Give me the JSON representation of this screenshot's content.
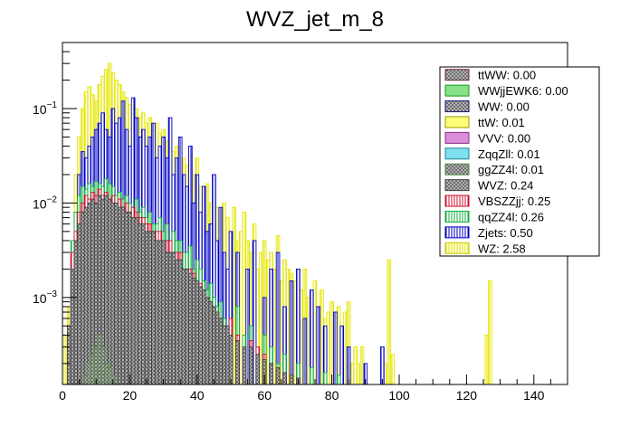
{
  "chart_data": {
    "type": "bar",
    "title": "WVZ_jet_m_8",
    "xlabel": "",
    "ylabel": "",
    "xlim": [
      0,
      150
    ],
    "ylog": true,
    "ylim": [
      0.00012,
      0.5
    ],
    "x_ticks": [
      {
        "value": 0,
        "label": "0"
      },
      {
        "value": 20,
        "label": "20"
      },
      {
        "value": 40,
        "label": "40"
      },
      {
        "value": 60,
        "label": "60"
      },
      {
        "value": 80,
        "label": "80"
      },
      {
        "value": 100,
        "label": "100"
      },
      {
        "value": 120,
        "label": "120"
      },
      {
        "value": 140,
        "label": "140"
      }
    ],
    "y_ticks": [
      {
        "value": 0.1,
        "base": "10",
        "exp": "−1"
      },
      {
        "value": 0.01,
        "base": "10",
        "exp": "−2"
      },
      {
        "value": 0.001,
        "base": "10",
        "exp": "−3"
      }
    ],
    "legend_position": "top-right",
    "legend": [
      {
        "label": "ttWW: 0.00",
        "fill": "#b07c84",
        "edge": "#6b2b39",
        "pattern": "hatch-cross"
      },
      {
        "label": "WWjjEWK6: 0.00",
        "fill": "#88e08a",
        "edge": "#1a9a1a",
        "pattern": "solid"
      },
      {
        "label": "WW: 0.00",
        "fill": "#5858a8",
        "edge": "#1a1a6b",
        "pattern": "hatch-cross"
      },
      {
        "label": "ttW: 0.01",
        "fill": "#ffff77",
        "edge": "#9a9a00",
        "pattern": "solid"
      },
      {
        "label": "VVV: 0.00",
        "fill": "#d88fd8",
        "edge": "#8a2a8a",
        "pattern": "solid"
      },
      {
        "label": "ZqqZll: 0.01",
        "fill": "#7fe0f0",
        "edge": "#1a8a9a",
        "pattern": "solid"
      },
      {
        "label": "ggZZ4l: 0.01",
        "fill": "#b7e6a0",
        "edge": "#4a8a3a",
        "pattern": "hatch-cross"
      },
      {
        "label": "WVZ: 0.24",
        "fill": "#a0a0a0",
        "edge": "#404040",
        "pattern": "hatch-cross"
      },
      {
        "label": "VBSZZjj: 0.25",
        "fill": "#ffffff",
        "edge": "#d01030",
        "pattern": "vlines-red"
      },
      {
        "label": "qqZZ4l: 0.26",
        "fill": "#ffffff",
        "edge": "#10b040",
        "pattern": "vlines-green"
      },
      {
        "label": "Zjets: 0.50",
        "fill": "#ffffff",
        "edge": "#0000c0",
        "pattern": "vlines-blue"
      },
      {
        "label": "WZ: 2.58",
        "fill": "#ffffff",
        "edge": "#c8c800",
        "pattern": "vlines-yellow"
      }
    ],
    "bin_width": 1,
    "series": [
      {
        "name": "WZ",
        "color": "#e6e600",
        "x": [
          1,
          2,
          3,
          4,
          5,
          6,
          7,
          8,
          9,
          10,
          11,
          12,
          13,
          14,
          15,
          16,
          17,
          18,
          19,
          20,
          21,
          22,
          23,
          24,
          25,
          26,
          27,
          28,
          29,
          30,
          31,
          32,
          33,
          34,
          35,
          36,
          37,
          38,
          39,
          40,
          41,
          42,
          43,
          44,
          45,
          46,
          47,
          48,
          49,
          50,
          51,
          52,
          53,
          54,
          55,
          56,
          57,
          58,
          59,
          60,
          61,
          62,
          63,
          64,
          65,
          66,
          67,
          68,
          69,
          70,
          71,
          72,
          73,
          74,
          75,
          76,
          77,
          78,
          79,
          80,
          81,
          82,
          83,
          84,
          85,
          86,
          87,
          88,
          89,
          90,
          96,
          97,
          98,
          126,
          127
        ],
        "y": [
          0.0004,
          0.0008,
          0.004,
          0.02,
          0.05,
          0.1,
          0.15,
          0.17,
          0.14,
          0.12,
          0.18,
          0.22,
          0.26,
          0.3,
          0.24,
          0.2,
          0.18,
          0.15,
          0.13,
          0.11,
          0.12,
          0.1,
          0.08,
          0.09,
          0.07,
          0.08,
          0.06,
          0.07,
          0.055,
          0.06,
          0.045,
          0.05,
          0.035,
          0.04,
          0.05,
          0.03,
          0.025,
          0.032,
          0.02,
          0.03,
          0.015,
          0.012,
          0.016,
          0.01,
          0.012,
          0.009,
          0.008,
          0.01,
          0.007,
          0.005,
          0.009,
          0.004,
          0.005,
          0.008,
          0.004,
          0.003,
          0.006,
          0.002,
          0.003,
          0.004,
          0.0025,
          0.003,
          0.002,
          0.0045,
          0.0015,
          0.0025,
          0.002,
          0.0018,
          0.0015,
          0.0016,
          0.0012,
          0.002,
          0.001,
          0.0009,
          0.0015,
          0.0008,
          0.0012,
          0.0006,
          0.0007,
          0.0009,
          0.0004,
          0.0008,
          0.0005,
          0.0007,
          0.0009,
          0.0002,
          0.0003,
          0.0002,
          0.0003,
          0.00018,
          0.0002,
          0.0025,
          0.00025,
          0.0004,
          0.0015
        ]
      },
      {
        "name": "Zjets",
        "color": "#0000c0",
        "x": [
          3,
          4,
          5,
          6,
          7,
          8,
          9,
          10,
          11,
          12,
          13,
          14,
          15,
          16,
          17,
          18,
          19,
          20,
          21,
          22,
          23,
          24,
          25,
          26,
          27,
          28,
          29,
          30,
          31,
          32,
          33,
          34,
          35,
          36,
          37,
          38,
          39,
          40,
          41,
          42,
          43,
          44,
          45,
          46,
          47,
          48,
          49,
          50,
          52,
          55,
          57,
          60,
          62,
          64,
          66,
          68,
          70,
          72,
          74,
          76,
          78,
          81,
          83,
          85,
          90,
          95
        ],
        "y": [
          0.003,
          0.008,
          0.02,
          0.035,
          0.03,
          0.04,
          0.05,
          0.06,
          0.07,
          0.09,
          0.06,
          0.05,
          0.1,
          0.07,
          0.08,
          0.12,
          0.06,
          0.04,
          0.13,
          0.08,
          0.05,
          0.06,
          0.04,
          0.05,
          0.07,
          0.03,
          0.04,
          0.05,
          0.03,
          0.08,
          0.02,
          0.03,
          0.05,
          0.02,
          0.015,
          0.04,
          0.01,
          0.02,
          0.008,
          0.015,
          0.005,
          0.006,
          0.02,
          0.004,
          0.009,
          0.003,
          0.002,
          0.005,
          0.003,
          0.002,
          0.004,
          0.001,
          0.002,
          0.003,
          0.0008,
          0.0015,
          0.002,
          0.0006,
          0.0012,
          0.0008,
          0.0005,
          0.0007,
          0.0005,
          0.0003,
          0.0002,
          0.0003
        ]
      },
      {
        "name": "qqZZ4l",
        "color": "#10b040",
        "x": [
          2,
          3,
          4,
          5,
          6,
          7,
          8,
          9,
          10,
          11,
          12,
          13,
          14,
          15,
          16,
          17,
          18,
          19,
          20,
          21,
          22,
          23,
          24,
          25,
          26,
          27,
          28,
          29,
          30,
          31,
          32,
          33,
          34,
          35,
          36,
          37,
          38,
          39,
          40,
          41,
          42,
          43,
          44,
          45,
          46,
          47,
          48,
          50,
          52,
          54,
          56,
          58,
          60,
          62,
          64,
          66,
          70,
          74,
          78,
          82
        ],
        "y": [
          0.0004,
          0.004,
          0.008,
          0.012,
          0.015,
          0.014,
          0.016,
          0.015,
          0.017,
          0.016,
          0.015,
          0.018,
          0.016,
          0.015,
          0.012,
          0.013,
          0.011,
          0.012,
          0.01,
          0.009,
          0.011,
          0.008,
          0.009,
          0.007,
          0.008,
          0.006,
          0.006,
          0.007,
          0.005,
          0.006,
          0.004,
          0.005,
          0.004,
          0.004,
          0.003,
          0.003,
          0.0035,
          0.002,
          0.0025,
          0.002,
          0.0015,
          0.0012,
          0.0014,
          0.001,
          0.0008,
          0.0009,
          0.0006,
          0.0005,
          0.0008,
          0.0004,
          0.0005,
          0.0003,
          0.0004,
          0.0003,
          0.0002,
          0.00025,
          0.0002,
          0.00018,
          0.00016,
          0.00015
        ]
      },
      {
        "name": "VBSZZjj",
        "color": "#d01030",
        "x": [
          3,
          4,
          5,
          6,
          7,
          8,
          9,
          10,
          11,
          12,
          13,
          14,
          15,
          16,
          17,
          18,
          19,
          20,
          21,
          22,
          23,
          24,
          25,
          26,
          27,
          28,
          29,
          30,
          31,
          32,
          33,
          34,
          35,
          36,
          37,
          38,
          39,
          40,
          41,
          42,
          43,
          44,
          45,
          46,
          47,
          48,
          50,
          52,
          54,
          56,
          58,
          60,
          62,
          64,
          66,
          68,
          70
        ],
        "y": [
          0.003,
          0.005,
          0.008,
          0.01,
          0.012,
          0.011,
          0.013,
          0.012,
          0.014,
          0.012,
          0.013,
          0.011,
          0.012,
          0.01,
          0.011,
          0.009,
          0.01,
          0.008,
          0.009,
          0.008,
          0.007,
          0.007,
          0.006,
          0.006,
          0.005,
          0.005,
          0.005,
          0.004,
          0.004,
          0.004,
          0.003,
          0.003,
          0.003,
          0.002,
          0.002,
          0.002,
          0.0018,
          0.0015,
          0.0014,
          0.0012,
          0.001,
          0.0009,
          0.0008,
          0.0007,
          0.0006,
          0.0005,
          0.0006,
          0.0004,
          0.0003,
          0.00035,
          0.0003,
          0.00025,
          0.0002,
          0.00018,
          0.00016,
          0.00015,
          0.00014
        ]
      },
      {
        "name": "WVZ",
        "color": "#404040",
        "x": [
          2,
          3,
          4,
          5,
          6,
          7,
          8,
          9,
          10,
          11,
          12,
          13,
          14,
          15,
          16,
          17,
          18,
          19,
          20,
          21,
          22,
          23,
          24,
          25,
          26,
          27,
          28,
          29,
          30,
          31,
          32,
          33,
          34,
          35,
          36,
          37,
          38,
          39,
          40,
          41,
          42,
          43,
          44,
          45,
          46,
          47,
          48,
          49,
          50,
          52,
          54,
          56,
          58,
          60,
          62,
          64,
          66,
          68,
          70
        ],
        "y": [
          0.0005,
          0.002,
          0.004,
          0.006,
          0.008,
          0.009,
          0.01,
          0.011,
          0.01,
          0.012,
          0.011,
          0.012,
          0.011,
          0.01,
          0.01,
          0.009,
          0.009,
          0.008,
          0.008,
          0.007,
          0.007,
          0.006,
          0.006,
          0.005,
          0.005,
          0.005,
          0.004,
          0.004,
          0.004,
          0.003,
          0.003,
          0.003,
          0.0025,
          0.0025,
          0.002,
          0.002,
          0.0018,
          0.0016,
          0.0015,
          0.0013,
          0.0012,
          0.001,
          0.0009,
          0.0008,
          0.0007,
          0.0006,
          0.0005,
          0.0005,
          0.0004,
          0.00035,
          0.0003,
          0.0003,
          0.00025,
          0.00022,
          0.0002,
          0.00018,
          0.00016,
          0.00015,
          0.00014
        ]
      },
      {
        "name": "ggZZ4l",
        "color": "#4a8a3a",
        "x": [
          7,
          8,
          9,
          10,
          11,
          12,
          13,
          14,
          15
        ],
        "y": [
          0.00015,
          0.0002,
          0.00025,
          0.0003,
          0.0004,
          0.0003,
          0.0002,
          0.00018,
          0.00015
        ]
      }
    ]
  }
}
